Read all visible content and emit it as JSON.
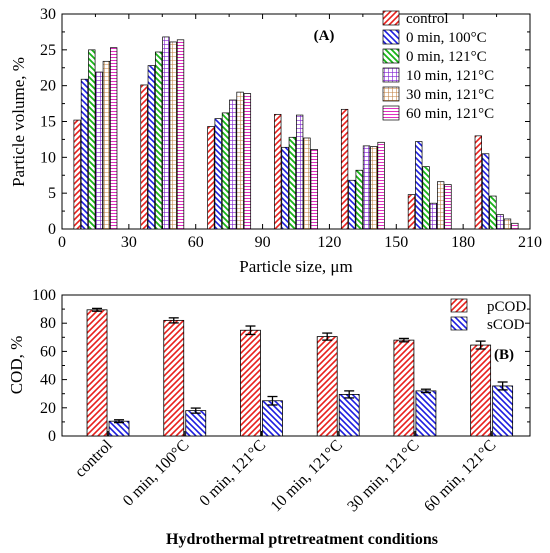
{
  "chart_data": [
    {
      "panel_label": "(A)",
      "type": "bar",
      "title": "",
      "xlabel": "Particle size, μm",
      "ylabel": "Particle volume, %",
      "xlim": [
        0,
        210
      ],
      "ylim": [
        0,
        30
      ],
      "xticks": [
        "0",
        "30",
        "60",
        "90",
        "120",
        "150",
        "180",
        "210"
      ],
      "yticks": [
        "0",
        "5",
        "10",
        "15",
        "20",
        "25",
        "30"
      ],
      "group_centers": [
        15,
        45,
        75,
        105,
        135,
        165,
        195
      ],
      "legend_position": "top-right",
      "grid": false,
      "series": [
        {
          "name": "control",
          "pattern": "diag-up",
          "color": "#e8201c",
          "values": [
            15.2,
            20.1,
            14.3,
            16.0,
            16.7,
            4.8,
            13.0
          ]
        },
        {
          "name": "0 min, 100°C",
          "pattern": "diag-down",
          "color": "#1c1ce0",
          "values": [
            20.9,
            22.8,
            15.4,
            11.4,
            6.8,
            12.2,
            10.5
          ]
        },
        {
          "name": "0 min, 121°C",
          "pattern": "diag-down",
          "color": "#18b418",
          "values": [
            25.0,
            24.7,
            16.2,
            12.8,
            8.2,
            8.7,
            4.6
          ]
        },
        {
          "name": "10 min, 121°C",
          "pattern": "grid",
          "color": "#8020d0",
          "values": [
            21.9,
            26.8,
            18.0,
            15.9,
            11.6,
            3.6,
            2.0
          ]
        },
        {
          "name": "30 min, 121°C",
          "pattern": "grid",
          "color": "#c08040",
          "values": [
            23.4,
            26.1,
            19.1,
            12.7,
            11.5,
            6.6,
            1.4
          ]
        },
        {
          "name": "60 min, 121°C",
          "pattern": "hlines",
          "color": "#e030c0",
          "values": [
            25.3,
            26.4,
            18.9,
            11.1,
            12.1,
            6.2,
            0.8
          ]
        }
      ]
    },
    {
      "panel_label": "(B)",
      "type": "bar",
      "title": "",
      "xlabel": "Hydrothermal ptretreatment conditions",
      "ylabel": "COD, %",
      "ylim": [
        0,
        100
      ],
      "yticks": [
        "0",
        "20",
        "40",
        "60",
        "80",
        "100"
      ],
      "categories": [
        "control",
        "0 min, 100°C",
        "0 min, 121°C",
        "10 min, 121°C",
        "30 min, 121°C",
        "60 min, 121°C"
      ],
      "legend_position": "top-right",
      "grid": false,
      "series": [
        {
          "name": "pCOD",
          "pattern": "diag-up",
          "color": "#e8201c",
          "values": [
            89.5,
            82.0,
            75.0,
            70.5,
            68.0,
            64.5
          ],
          "errors": [
            1.0,
            1.8,
            3.0,
            2.5,
            1.2,
            2.8
          ]
        },
        {
          "name": "sCOD",
          "pattern": "diag-down",
          "color": "#1c1ce0",
          "values": [
            10.5,
            18.0,
            25.0,
            29.5,
            32.0,
            35.5
          ],
          "errors": [
            1.0,
            1.8,
            3.0,
            2.5,
            1.2,
            2.8
          ]
        }
      ]
    }
  ]
}
